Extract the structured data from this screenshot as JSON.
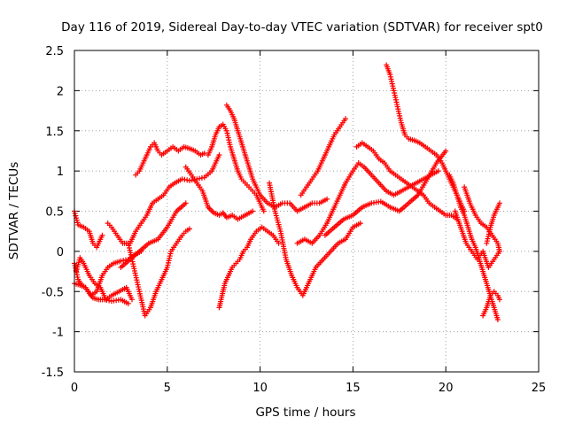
{
  "chart_data": {
    "type": "scatter",
    "title": "Day 116 of 2019, Sidereal Day-to-day VTEC variation (SDTVAR) for receiver spt0",
    "xlabel": "GPS time / hours",
    "ylabel": "SDTVAR / TECUs",
    "xlim": [
      0,
      25
    ],
    "ylim": [
      -1.5,
      2.5
    ],
    "xticks": [
      0,
      5,
      10,
      15,
      20,
      25
    ],
    "yticks": [
      -1.5,
      -1,
      -0.5,
      0,
      0.5,
      1,
      1.5,
      2,
      2.5
    ],
    "ytick_labels": [
      "-1.5",
      "-1",
      "-0.5",
      "0",
      "0.5",
      "1",
      "1.5",
      "2",
      "2.5"
    ],
    "grid": true,
    "marker": "+",
    "color": "#ff0000",
    "series": [
      {
        "x": [
          0.0,
          0.2,
          0.5,
          0.8,
          1.0,
          1.2,
          1.5
        ],
        "y": [
          0.5,
          0.33,
          0.3,
          0.25,
          0.1,
          0.05,
          0.2
        ]
      },
      {
        "x": [
          0.0,
          0.2,
          0.4,
          0.6,
          0.8,
          1.0,
          1.3,
          1.6,
          2.0,
          2.5,
          2.9
        ],
        "y": [
          -0.15,
          -0.35,
          -0.42,
          -0.45,
          -0.52,
          -0.58,
          -0.6,
          -0.6,
          -0.62,
          -0.6,
          -0.65
        ]
      },
      {
        "x": [
          0.0,
          0.3,
          0.6,
          0.9,
          1.2,
          1.5,
          1.8,
          2.1,
          2.5,
          2.9,
          3.2,
          3.6
        ],
        "y": [
          -0.4,
          -0.42,
          -0.45,
          -0.55,
          -0.5,
          -0.3,
          -0.2,
          -0.15,
          -0.12,
          -0.1,
          -0.05,
          0.0
        ]
      },
      {
        "x": [
          0.1,
          0.3,
          0.5,
          0.8,
          1.1,
          1.4,
          1.7,
          2.0,
          2.4,
          2.8,
          3.1
        ],
        "y": [
          -0.25,
          -0.08,
          -0.15,
          -0.3,
          -0.4,
          -0.45,
          -0.6,
          -0.55,
          -0.5,
          -0.45,
          -0.6
        ]
      },
      {
        "x": [
          1.8,
          2.0,
          2.3,
          2.6,
          2.9,
          3.1,
          3.3,
          3.5,
          3.8,
          4.1,
          4.4,
          4.6,
          4.8,
          5.0,
          5.2,
          5.5,
          5.8,
          6.0,
          6.2
        ],
        "y": [
          0.35,
          0.3,
          0.2,
          0.1,
          0.1,
          -0.1,
          -0.3,
          -0.5,
          -0.8,
          -0.7,
          -0.5,
          -0.4,
          -0.3,
          -0.2,
          0.0,
          0.1,
          0.2,
          0.25,
          0.28
        ]
      },
      {
        "x": [
          3.3,
          3.5,
          3.7,
          3.9,
          4.1,
          4.3,
          4.5,
          4.7,
          5.0,
          5.3,
          5.6,
          5.9,
          6.2,
          6.5,
          6.8,
          7.0
        ],
        "y": [
          0.95,
          1.0,
          1.1,
          1.2,
          1.3,
          1.35,
          1.25,
          1.2,
          1.25,
          1.3,
          1.25,
          1.3,
          1.28,
          1.25,
          1.2,
          1.22
        ]
      },
      {
        "x": [
          2.5,
          3.0,
          3.5,
          4.0,
          4.5,
          5.0,
          5.5,
          6.0
        ],
        "y": [
          -0.2,
          -0.1,
          0.0,
          0.1,
          0.15,
          0.3,
          0.5,
          0.6
        ]
      },
      {
        "x": [
          3.0,
          3.3,
          3.6,
          3.9,
          4.2,
          4.5,
          4.8,
          5.1,
          5.4,
          5.8,
          6.2,
          6.6,
          7.0,
          7.4,
          7.8
        ],
        "y": [
          0.1,
          0.25,
          0.35,
          0.45,
          0.6,
          0.65,
          0.7,
          0.8,
          0.85,
          0.9,
          0.88,
          0.9,
          0.92,
          1.0,
          1.2
        ]
      },
      {
        "x": [
          6.0,
          6.3,
          6.6,
          6.9,
          7.2,
          7.5,
          7.8,
          8.0,
          8.2,
          8.5,
          8.8,
          9.2,
          9.6
        ],
        "y": [
          1.05,
          0.95,
          0.85,
          0.75,
          0.55,
          0.48,
          0.45,
          0.48,
          0.42,
          0.45,
          0.4,
          0.45,
          0.5
        ]
      },
      {
        "x": [
          7.2,
          7.4,
          7.6,
          7.8,
          8.0,
          8.2,
          8.4,
          8.6,
          8.8,
          9.0,
          9.2,
          9.4,
          9.6,
          9.8,
          10.0,
          10.2
        ],
        "y": [
          1.2,
          1.3,
          1.45,
          1.55,
          1.58,
          1.5,
          1.3,
          1.15,
          1.0,
          0.9,
          0.85,
          0.8,
          0.75,
          0.7,
          0.6,
          0.5
        ]
      },
      {
        "x": [
          8.2,
          8.4,
          8.6,
          8.8,
          9.0,
          9.2,
          9.4,
          9.6,
          9.8,
          10.0,
          10.4,
          10.8,
          11.2,
          11.6,
          12.0,
          12.4,
          12.8,
          13.2,
          13.6
        ],
        "y": [
          1.82,
          1.75,
          1.65,
          1.5,
          1.35,
          1.2,
          1.05,
          0.9,
          0.8,
          0.7,
          0.6,
          0.55,
          0.6,
          0.6,
          0.5,
          0.55,
          0.6,
          0.6,
          0.65
        ]
      },
      {
        "x": [
          7.8,
          7.9,
          8.0,
          8.1,
          8.3,
          8.5,
          8.7,
          8.9,
          9.1,
          9.3,
          9.5,
          9.8,
          10.1,
          10.4,
          10.7,
          11.0
        ],
        "y": [
          -0.7,
          -0.6,
          -0.5,
          -0.4,
          -0.3,
          -0.2,
          -0.15,
          -0.1,
          0.0,
          0.05,
          0.15,
          0.25,
          0.3,
          0.25,
          0.2,
          0.1
        ]
      },
      {
        "x": [
          10.5,
          10.8,
          11.1,
          11.4,
          11.7,
          12.0,
          12.3,
          12.6,
          13.0,
          13.4,
          13.8,
          14.2,
          14.6,
          15.0,
          15.4
        ],
        "y": [
          0.85,
          0.5,
          0.25,
          -0.1,
          -0.3,
          -0.45,
          -0.55,
          -0.4,
          -0.2,
          -0.1,
          0.0,
          0.1,
          0.15,
          0.3,
          0.35
        ]
      },
      {
        "x": [
          12.0,
          12.4,
          12.8,
          13.2,
          13.6,
          14.0,
          14.3,
          14.6,
          15.0,
          15.3,
          15.6,
          16.0,
          16.4,
          16.8,
          17.2,
          17.6,
          18.0,
          18.4,
          18.8,
          19.2,
          19.6
        ],
        "y": [
          0.1,
          0.15,
          0.1,
          0.2,
          0.35,
          0.55,
          0.7,
          0.85,
          1.0,
          1.1,
          1.05,
          0.95,
          0.85,
          0.75,
          0.7,
          0.75,
          0.8,
          0.85,
          0.9,
          0.95,
          1.0
        ]
      },
      {
        "x": [
          12.2,
          12.5,
          12.8,
          13.1,
          13.4,
          13.7,
          14.0,
          14.3,
          14.6
        ],
        "y": [
          0.7,
          0.8,
          0.9,
          1.0,
          1.15,
          1.3,
          1.45,
          1.55,
          1.65
        ]
      },
      {
        "x": [
          15.2,
          15.5,
          15.8,
          16.1,
          16.4,
          16.7,
          17.0,
          17.3,
          17.6,
          17.9,
          18.2,
          18.5,
          18.8,
          19.1,
          19.4,
          19.7,
          20.0,
          20.3,
          20.6
        ],
        "y": [
          1.3,
          1.35,
          1.3,
          1.25,
          1.15,
          1.1,
          1.0,
          0.95,
          0.9,
          0.85,
          0.8,
          0.75,
          0.7,
          0.6,
          0.55,
          0.5,
          0.45,
          0.45,
          0.4
        ]
      },
      {
        "x": [
          16.8,
          17.0,
          17.2,
          17.4,
          17.6,
          17.8,
          18.0,
          18.3,
          18.6,
          18.9,
          19.2,
          19.5,
          19.8,
          20.1,
          20.4,
          20.7,
          21.0
        ],
        "y": [
          2.32,
          2.2,
          2.0,
          1.8,
          1.6,
          1.45,
          1.4,
          1.38,
          1.35,
          1.3,
          1.25,
          1.2,
          1.1,
          0.95,
          0.8,
          0.65,
          0.5
        ]
      },
      {
        "x": [
          13.5,
          14.0,
          14.5,
          15.0,
          15.5,
          16.0,
          16.5,
          17.0,
          17.5,
          18.0,
          18.5,
          19.0,
          19.5,
          20.0
        ],
        "y": [
          0.2,
          0.3,
          0.4,
          0.45,
          0.55,
          0.6,
          0.62,
          0.55,
          0.5,
          0.6,
          0.7,
          0.9,
          1.1,
          1.25
        ]
      },
      {
        "x": [
          20.2,
          20.4,
          20.6,
          20.8,
          21.0,
          21.2,
          21.4,
          21.6,
          21.8,
          22.0,
          22.2,
          22.4,
          22.6,
          22.8
        ],
        "y": [
          0.95,
          0.85,
          0.7,
          0.55,
          0.45,
          0.3,
          0.15,
          0.05,
          -0.1,
          -0.25,
          -0.4,
          -0.55,
          -0.7,
          -0.85
        ]
      },
      {
        "x": [
          20.5,
          20.8,
          21.1,
          21.4,
          21.7,
          22.0,
          22.3,
          22.6,
          22.9
        ],
        "y": [
          0.5,
          0.3,
          0.1,
          0.0,
          -0.1,
          0.0,
          -0.2,
          -0.1,
          0.0
        ]
      },
      {
        "x": [
          21.0,
          21.3,
          21.6,
          21.9,
          22.2,
          22.5,
          22.8,
          22.9
        ],
        "y": [
          0.8,
          0.6,
          0.45,
          0.35,
          0.3,
          0.2,
          0.1,
          0.0
        ]
      },
      {
        "x": [
          22.0,
          22.2,
          22.4,
          22.6,
          22.8,
          22.9
        ],
        "y": [
          -0.8,
          -0.7,
          -0.55,
          -0.5,
          -0.55,
          -0.6
        ]
      },
      {
        "x": [
          22.2,
          22.4,
          22.6,
          22.8,
          22.9
        ],
        "y": [
          0.1,
          0.3,
          0.45,
          0.55,
          0.6
        ]
      }
    ]
  }
}
